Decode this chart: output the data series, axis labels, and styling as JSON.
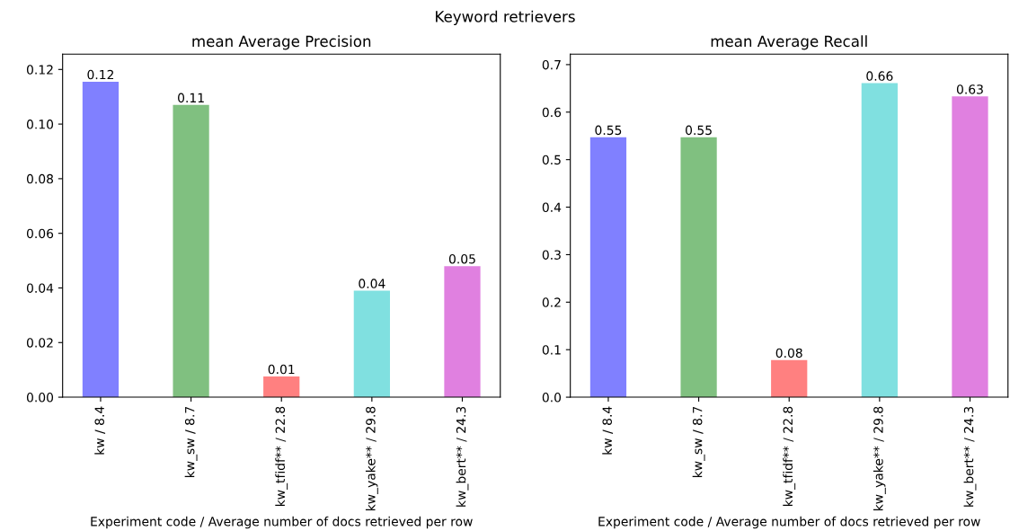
{
  "chart_data": [
    {
      "type": "bar",
      "title": "mean Average Precision",
      "xlabel": "Experiment code / Average number of docs retrieved per row",
      "annotations": [
        "Keyword retrievers"
      ],
      "categories": [
        "kw / 8.4",
        "kw_sw / 8.7",
        "kw_tfidf** / 22.8",
        "kw_yake** / 29.8",
        "kw_bert** / 24.3"
      ],
      "values": [
        0.1155,
        0.107,
        0.0076,
        0.039,
        0.048
      ],
      "value_labels": [
        "0.12",
        "0.11",
        "0.01",
        "0.04",
        "0.05"
      ],
      "colors": [
        "#8080ff",
        "#80c080",
        "#ff8080",
        "#80e0e0",
        "#e080e0"
      ],
      "ylim": [
        0,
        0.1256
      ],
      "yticks": [
        {
          "value": 0,
          "label": "0.00"
        },
        {
          "value": 0.02,
          "label": "0.02"
        },
        {
          "value": 0.04,
          "label": "0.04"
        },
        {
          "value": 0.06,
          "label": "0.06"
        },
        {
          "value": 0.08,
          "label": "0.08"
        },
        {
          "value": 0.1,
          "label": "0.10"
        },
        {
          "value": 0.12,
          "label": "0.12"
        }
      ],
      "grid": false
    },
    {
      "type": "bar",
      "title": "mean Average Recall",
      "xlabel": "Experiment code / Average number of docs retrieved per row",
      "categories": [
        "kw / 8.4",
        "kw_sw / 8.7",
        "kw_tfidf** / 22.8",
        "kw_yake** / 29.8",
        "kw_bert** / 24.3"
      ],
      "values": [
        0.547,
        0.547,
        0.078,
        0.661,
        0.633
      ],
      "value_labels": [
        "0.55",
        "0.55",
        "0.08",
        "0.66",
        "0.63"
      ],
      "colors": [
        "#8080ff",
        "#80c080",
        "#ff8080",
        "#80e0e0",
        "#e080e0"
      ],
      "ylim": [
        0,
        0.722
      ],
      "yticks": [
        {
          "value": 0,
          "label": "0.0"
        },
        {
          "value": 0.1,
          "label": "0.1"
        },
        {
          "value": 0.2,
          "label": "0.2"
        },
        {
          "value": 0.3,
          "label": "0.3"
        },
        {
          "value": 0.4,
          "label": "0.4"
        },
        {
          "value": 0.5,
          "label": "0.5"
        },
        {
          "value": 0.6,
          "label": "0.6"
        },
        {
          "value": 0.7,
          "label": "0.7"
        }
      ],
      "grid": false
    }
  ]
}
